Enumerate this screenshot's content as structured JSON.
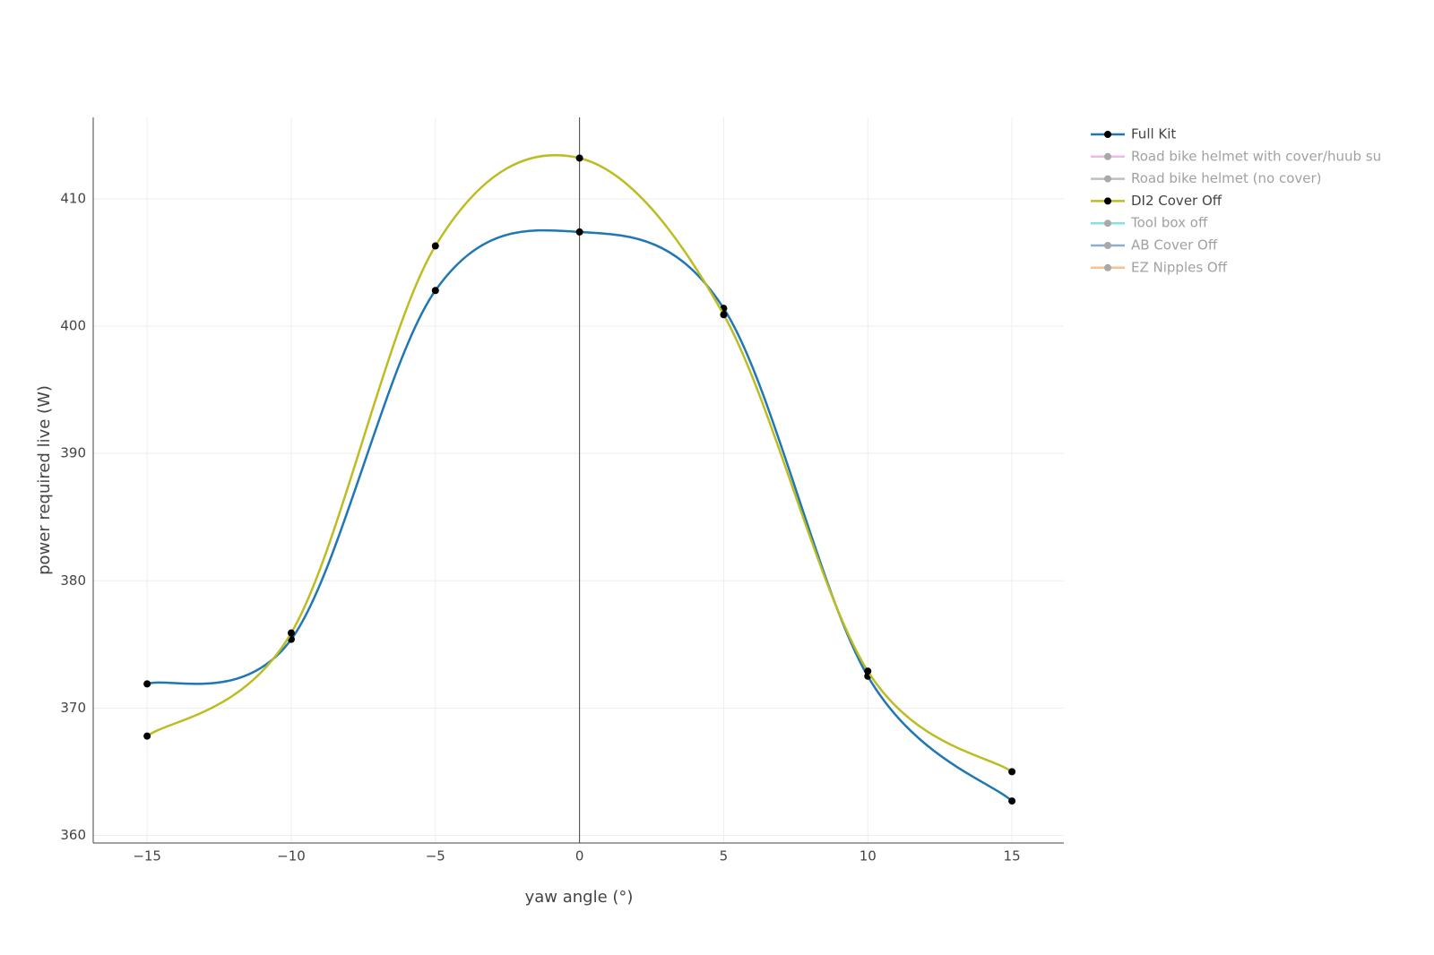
{
  "chart_data": {
    "type": "line",
    "x_label": "yaw angle (°)",
    "y_label": "power required live (W)",
    "x": [
      -15,
      -10,
      -5,
      0,
      5,
      10,
      15
    ],
    "series": [
      {
        "name": "Full Kit",
        "color": "#1f77b4",
        "visible": true,
        "values": [
          371.9,
          375.4,
          402.8,
          407.4,
          401.4,
          372.5,
          362.7
        ]
      },
      {
        "name": "Road bike helmet with cover/huub su",
        "color": "#e377c2",
        "visible": false
      },
      {
        "name": "Road bike helmet (no cover)",
        "color": "#7f7f7f",
        "visible": false
      },
      {
        "name": "DI2 Cover Off",
        "color": "#bcbd22",
        "visible": true,
        "values": [
          367.8,
          375.9,
          406.3,
          413.2,
          400.9,
          372.9,
          365.0
        ]
      },
      {
        "name": "Tool box off",
        "color": "#17becf",
        "visible": false
      },
      {
        "name": "AB Cover Off",
        "color": "#1f5f9f",
        "visible": false
      },
      {
        "name": "EZ Nipples Off",
        "color": "#ff7f0e",
        "visible": false
      }
    ],
    "marker_color": "#000000",
    "xlim": [
      -16.87,
      16.8
    ],
    "ylim": [
      359.4,
      416.4
    ],
    "xticks": [
      {
        "value": -15,
        "label": "−15"
      },
      {
        "value": -10,
        "label": "−10"
      },
      {
        "value": -5,
        "label": "−5"
      },
      0,
      5,
      10,
      15
    ],
    "yticks": [
      360,
      370,
      380,
      390,
      400,
      410
    ],
    "grid": true,
    "zeroline_x": true,
    "line_shape": "spline",
    "legend": "right"
  }
}
